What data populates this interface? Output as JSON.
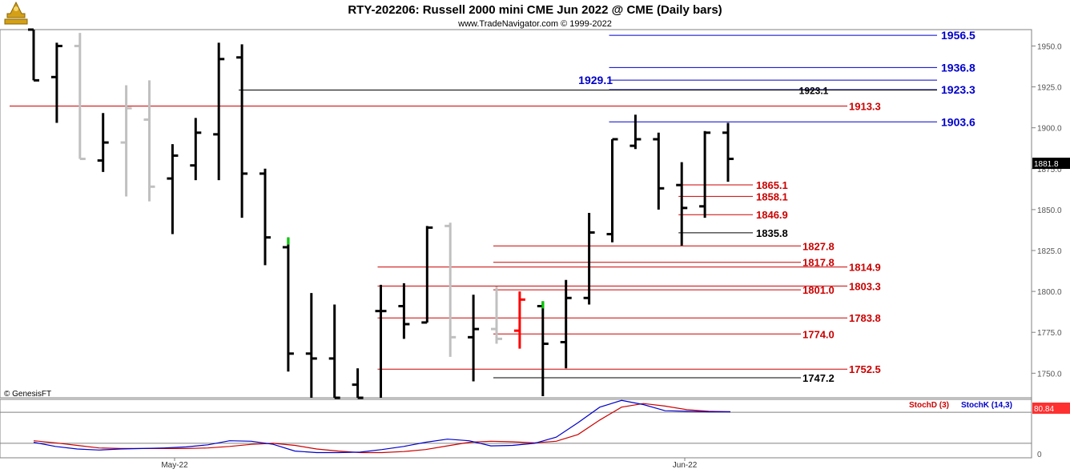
{
  "header": {
    "title": "RTY-202206:  Russell 2000 mini CME Jun 2022 @ CME  (Daily bars)",
    "subtitle": "www.TradeNavigator.com © 1999-2022",
    "copyright": "© GenesisFT",
    "logo_icon": "gold-trophy-logo-icon"
  },
  "chart_data": [
    {
      "type": "ohlc",
      "x_labels": [
        "May-22",
        "Jun-22"
      ],
      "ylim": [
        1735,
        1960
      ],
      "y_ticks": [
        1750.0,
        1775.0,
        1800.0,
        1825.0,
        1850.0,
        1875.0,
        1900.0,
        1925.0,
        1950.0
      ],
      "last_price": "1881.8",
      "colors": {
        "up": "#000000",
        "muted": "#c0c0c0",
        "red": "#ff0000",
        "green": "#00cc00"
      },
      "bars": [
        {
          "o": 1960,
          "h": 1960,
          "l": 1929,
          "c": 1929,
          "color": "#000000"
        },
        {
          "o": 1931,
          "h": 1952,
          "l": 1903,
          "c": 1950,
          "color": "#000000"
        },
        {
          "o": 1950,
          "h": 1958,
          "l": 1881,
          "c": 1881,
          "color": "#c0c0c0"
        },
        {
          "o": 1880,
          "h": 1909,
          "l": 1873,
          "c": 1891,
          "color": "#000000"
        },
        {
          "o": 1891,
          "h": 1926,
          "l": 1858,
          "c": 1912,
          "color": "#c0c0c0"
        },
        {
          "o": 1905,
          "h": 1929,
          "l": 1855,
          "c": 1864,
          "color": "#c0c0c0"
        },
        {
          "o": 1869,
          "h": 1890,
          "l": 1835,
          "c": 1883,
          "color": "#000000"
        },
        {
          "o": 1877,
          "h": 1906,
          "l": 1868,
          "c": 1897,
          "color": "#000000"
        },
        {
          "o": 1896,
          "h": 1952,
          "l": 1868,
          "c": 1942,
          "color": "#000000"
        },
        {
          "o": 1943,
          "h": 1951,
          "l": 1845,
          "c": 1872,
          "color": "#000000"
        },
        {
          "o": 1872,
          "h": 1875,
          "l": 1816,
          "c": 1833,
          "color": "#000000"
        },
        {
          "o": 1827,
          "h": 1833,
          "l": 1751,
          "c": 1762,
          "color": "#000000",
          "top": "#00cc00"
        },
        {
          "o": 1762,
          "h": 1799,
          "l": 1735,
          "c": 1759,
          "color": "#000000"
        },
        {
          "o": 1759,
          "h": 1792,
          "l": 1735,
          "c": 1735,
          "color": "#000000"
        },
        {
          "o": 1743,
          "h": 1753,
          "l": 1735,
          "c": 1735,
          "color": "#000000"
        },
        {
          "o": 1788,
          "h": 1804,
          "l": 1735,
          "c": 1788,
          "color": "#000000"
        },
        {
          "o": 1791,
          "h": 1805,
          "l": 1771,
          "c": 1780,
          "color": "#000000"
        },
        {
          "o": 1781,
          "h": 1840,
          "l": 1781,
          "c": 1839,
          "color": "#000000"
        },
        {
          "o": 1840,
          "h": 1842,
          "l": 1760,
          "c": 1772,
          "color": "#c0c0c0"
        },
        {
          "o": 1772,
          "h": 1798,
          "l": 1745,
          "c": 1777,
          "color": "#000000"
        },
        {
          "o": 1777,
          "h": 1803,
          "l": 1768,
          "c": 1771,
          "color": "#c0c0c0"
        },
        {
          "o": 1776,
          "h": 1800,
          "l": 1765,
          "c": 1795,
          "color": "#ff0000"
        },
        {
          "o": 1791,
          "h": 1794,
          "l": 1736,
          "c": 1768,
          "color": "#000000",
          "top": "#00cc00"
        },
        {
          "o": 1769,
          "h": 1807,
          "l": 1753,
          "c": 1796,
          "color": "#000000"
        },
        {
          "o": 1796,
          "h": 1848,
          "l": 1792,
          "c": 1836,
          "color": "#000000"
        },
        {
          "o": 1835,
          "h": 1893,
          "l": 1830,
          "c": 1893,
          "color": "#000000"
        },
        {
          "o": 1889,
          "h": 1908,
          "l": 1887,
          "c": 1893,
          "color": "#000000"
        },
        {
          "o": 1893,
          "h": 1897,
          "l": 1850,
          "c": 1863,
          "color": "#000000"
        },
        {
          "o": 1865,
          "h": 1879,
          "l": 1828,
          "c": 1851,
          "color": "#000000"
        },
        {
          "o": 1852,
          "h": 1898,
          "l": 1845,
          "c": 1897,
          "color": "#000000"
        },
        {
          "o": 1897,
          "h": 1903,
          "l": 1867,
          "c": 1881,
          "color": "#000000"
        }
      ],
      "levels": [
        {
          "label": "1956.5",
          "value": 1956.5,
          "color": "#0000cc",
          "from_bar": 25,
          "label_side": "right"
        },
        {
          "label": "1936.8",
          "value": 1936.8,
          "color": "#0000cc",
          "from_bar": 25,
          "label_side": "right"
        },
        {
          "label": "1929.1",
          "value": 1929.1,
          "color": "#0000cc",
          "from_bar": 25,
          "label_side": "left"
        },
        {
          "label": "1923.3",
          "value": 1923.3,
          "color": "#0000cc",
          "from_bar": 25,
          "label_side": "right"
        },
        {
          "label": "1923.1",
          "value": 1923.1,
          "color": "#000000",
          "from_bar": 9,
          "label_side": "inner"
        },
        {
          "label": "1913.3",
          "value": 1913.3,
          "color": "#cc0000",
          "from_bar": -1,
          "label_side": "right"
        },
        {
          "label": "1903.6",
          "value": 1903.6,
          "color": "#0000cc",
          "from_bar": 25,
          "label_side": "right"
        },
        {
          "label": "1865.1",
          "value": 1865.1,
          "color": "#cc0000",
          "from_bar": 28,
          "label_side": "short"
        },
        {
          "label": "1858.1",
          "value": 1858.1,
          "color": "#cc0000",
          "from_bar": 28,
          "label_side": "short"
        },
        {
          "label": "1846.9",
          "value": 1846.9,
          "color": "#cc0000",
          "from_bar": 28,
          "label_side": "short"
        },
        {
          "label": "1835.8",
          "value": 1835.8,
          "color": "#000000",
          "from_bar": 28,
          "label_side": "short"
        },
        {
          "label": "1827.8",
          "value": 1827.8,
          "color": "#cc0000",
          "from_bar": 20,
          "label_side": "mid"
        },
        {
          "label": "1817.8",
          "value": 1817.8,
          "color": "#cc0000",
          "from_bar": 20,
          "label_side": "mid"
        },
        {
          "label": "1814.9",
          "value": 1814.9,
          "color": "#cc0000",
          "from_bar": 15,
          "label_side": "right"
        },
        {
          "label": "1803.3",
          "value": 1803.3,
          "color": "#cc0000",
          "from_bar": 15,
          "label_side": "right"
        },
        {
          "label": "1801.0",
          "value": 1801.0,
          "color": "#cc0000",
          "from_bar": 20,
          "label_side": "mid"
        },
        {
          "label": "1783.8",
          "value": 1783.8,
          "color": "#cc0000",
          "from_bar": 15,
          "label_side": "right"
        },
        {
          "label": "1774.0",
          "value": 1774.0,
          "color": "#cc0000",
          "from_bar": 20,
          "label_side": "mid"
        },
        {
          "label": "1752.5",
          "value": 1752.5,
          "color": "#cc0000",
          "from_bar": 15,
          "label_side": "right"
        },
        {
          "label": "1747.2",
          "value": 1747.2,
          "color": "#000000",
          "from_bar": 20,
          "label_side": "mid"
        }
      ]
    },
    {
      "type": "line",
      "name": "stochastic",
      "ylim": [
        -8,
        105
      ],
      "y_ticks": [
        0
      ],
      "levels": [
        80,
        20
      ],
      "value_tag": "80.84",
      "series": [
        {
          "name": "StochD (3)",
          "color": "#cc0000",
          "values": [
            25,
            21,
            16,
            11,
            10,
            10,
            10,
            10,
            11,
            14,
            18,
            20,
            16,
            9,
            5,
            2,
            2,
            4,
            8,
            15,
            22,
            24,
            23,
            21,
            24,
            37,
            65,
            90,
            97,
            92,
            85,
            82,
            81
          ]
        },
        {
          "name": "StochK (14,3)",
          "color": "#0000cc",
          "values": [
            22,
            14,
            9,
            7,
            9,
            10,
            11,
            13,
            17,
            25,
            24,
            18,
            5,
            2,
            2,
            3,
            8,
            14,
            22,
            28,
            25,
            15,
            16,
            20,
            32,
            60,
            90,
            103,
            95,
            83,
            82,
            81,
            81
          ]
        }
      ]
    }
  ]
}
